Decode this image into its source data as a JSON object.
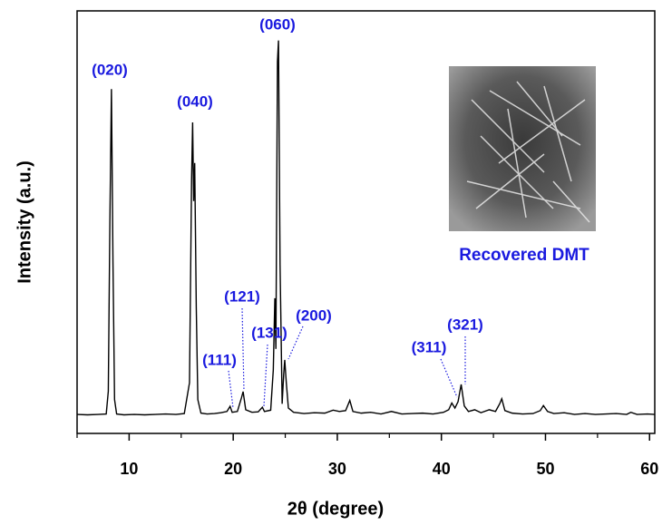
{
  "chart_data": {
    "type": "line",
    "x_label": "2θ (degree)",
    "y_label": "Intensity (a.u.)",
    "xlim": [
      5,
      60.5
    ],
    "ylim": [
      0,
      100
    ],
    "xticks": [
      10,
      20,
      30,
      40,
      50,
      60
    ],
    "xminorticks": [
      5,
      15,
      25,
      35,
      45,
      55
    ],
    "series": [
      {
        "color": "#000000",
        "x": [
          5,
          6,
          7,
          7.8,
          8.0,
          8.15,
          8.3,
          8.45,
          8.6,
          8.8,
          9.5,
          10.5,
          11.5,
          12.5,
          13.5,
          14.5,
          15.3,
          15.8,
          16.0,
          16.1,
          16.2,
          16.3,
          16.45,
          16.6,
          16.9,
          17.5,
          18.2,
          18.8,
          19.4,
          19.7,
          19.9,
          20.4,
          20.8,
          20.95,
          21.2,
          21.8,
          22.4,
          22.8,
          23.0,
          23.6,
          23.85,
          24.0,
          24.1,
          24.25,
          24.35,
          24.5,
          24.7,
          24.85,
          24.95,
          25.1,
          25.3,
          25.8,
          26.8,
          27.8,
          28.8,
          29.6,
          30.2,
          30.8,
          31.2,
          31.5,
          32.3,
          33.2,
          34.2,
          35.2,
          36.2,
          37.2,
          38.2,
          39.2,
          40.2,
          40.7,
          41.0,
          41.3,
          41.6,
          41.9,
          42.2,
          42.6,
          43.2,
          43.8,
          44.6,
          45.2,
          45.6,
          45.8,
          46.1,
          46.8,
          47.8,
          48.8,
          49.5,
          49.8,
          50.2,
          50.8,
          51.8,
          52.8,
          53.8,
          54.8,
          55.8,
          56.8,
          57.8,
          58.2,
          58.8,
          59.8,
          60.5
        ],
        "values": [
          4.5,
          4.4,
          4.5,
          4.6,
          10,
          50,
          81.5,
          40,
          8,
          4.6,
          4.4,
          4.5,
          4.4,
          4.5,
          4.6,
          4.5,
          4.7,
          12,
          60,
          73.6,
          55,
          64,
          30,
          8,
          4.8,
          4.6,
          4.7,
          4.9,
          5.2,
          6.4,
          5.0,
          5.2,
          8.5,
          9.9,
          5.6,
          5.0,
          5.1,
          6.2,
          5.2,
          5.5,
          15,
          32,
          20,
          88,
          93,
          40,
          7,
          14,
          17.4,
          12,
          6,
          5.0,
          4.7,
          4.9,
          4.8,
          5.5,
          5.2,
          5.4,
          7.8,
          5.2,
          4.8,
          5.0,
          4.6,
          5.2,
          4.6,
          4.7,
          4.8,
          4.6,
          5.0,
          5.6,
          7.2,
          6.0,
          7.5,
          11.6,
          6.5,
          5.2,
          5.6,
          4.9,
          5.6,
          5.2,
          7.0,
          8.2,
          5.4,
          4.8,
          4.6,
          4.7,
          5.4,
          6.6,
          5.2,
          4.7,
          4.9,
          4.5,
          4.7,
          4.5,
          4.6,
          4.7,
          4.5,
          5.0,
          4.5,
          4.6,
          4.5
        ]
      }
    ],
    "annotations": [
      "(020)",
      "(040)",
      "(060)",
      "(111)",
      "(121)",
      "(131)",
      "(200)",
      "(311)",
      "(321)"
    ],
    "inset_label": "Recovered DMT",
    "annotation_color": "#1a1adf"
  }
}
